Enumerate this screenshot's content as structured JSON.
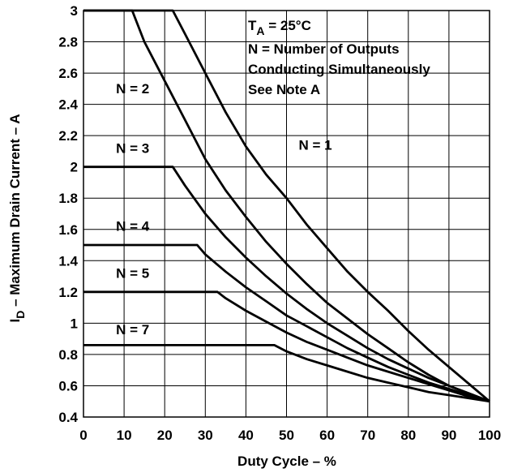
{
  "chart_data": {
    "type": "line",
    "xlabel": "Duty Cycle – %",
    "ylabel_main": "I",
    "ylabel_sub": "D",
    "ylabel_rest": " – Maximum Drain Current – A",
    "xlim": [
      0,
      100
    ],
    "ylim": [
      0.4,
      3.0
    ],
    "x_ticks": [
      0,
      10,
      20,
      30,
      40,
      50,
      60,
      70,
      80,
      90,
      100
    ],
    "y_ticks": [
      0.4,
      0.6,
      0.8,
      1,
      1.2,
      1.4,
      1.6,
      1.8,
      2,
      2.2,
      2.4,
      2.6,
      2.8,
      3
    ],
    "y_tick_labels": [
      "0.4",
      "0.6",
      "0.8",
      "1",
      "1.2",
      "1.4",
      "1.6",
      "1.8",
      "2",
      "2.2",
      "2.4",
      "2.6",
      "2.8",
      "3"
    ],
    "grid": true,
    "annotation": {
      "ta_main": "T",
      "ta_sub": "A",
      "ta_rest": " = 25°C",
      "line2": "N = Number of Outputs",
      "line3": "Conducting Simultaneously",
      "line4": "See Note A"
    },
    "series": [
      {
        "label": "N = 1",
        "label_at": [
          53,
          2.11
        ],
        "points": [
          [
            0,
            3.0
          ],
          [
            22,
            3.0
          ],
          [
            25,
            2.85
          ],
          [
            30,
            2.6
          ],
          [
            35,
            2.35
          ],
          [
            40,
            2.13
          ],
          [
            45,
            1.95
          ],
          [
            50,
            1.8
          ],
          [
            55,
            1.63
          ],
          [
            60,
            1.48
          ],
          [
            65,
            1.33
          ],
          [
            70,
            1.2
          ],
          [
            75,
            1.08
          ],
          [
            80,
            0.95
          ],
          [
            85,
            0.83
          ],
          [
            90,
            0.72
          ],
          [
            95,
            0.61
          ],
          [
            100,
            0.5
          ]
        ]
      },
      {
        "label": "N = 2",
        "label_at": [
          8,
          2.47
        ],
        "points": [
          [
            0,
            3.0
          ],
          [
            12,
            3.0
          ],
          [
            15,
            2.8
          ],
          [
            20,
            2.55
          ],
          [
            25,
            2.3
          ],
          [
            30,
            2.05
          ],
          [
            35,
            1.85
          ],
          [
            40,
            1.68
          ],
          [
            45,
            1.52
          ],
          [
            50,
            1.38
          ],
          [
            55,
            1.25
          ],
          [
            60,
            1.13
          ],
          [
            65,
            1.03
          ],
          [
            70,
            0.93
          ],
          [
            75,
            0.84
          ],
          [
            80,
            0.75
          ],
          [
            85,
            0.67
          ],
          [
            90,
            0.6
          ],
          [
            95,
            0.55
          ],
          [
            100,
            0.5
          ]
        ]
      },
      {
        "label": "N = 3",
        "label_at": [
          8,
          2.09
        ],
        "points": [
          [
            0,
            2.0
          ],
          [
            22,
            2.0
          ],
          [
            25,
            1.88
          ],
          [
            30,
            1.7
          ],
          [
            35,
            1.55
          ],
          [
            40,
            1.42
          ],
          [
            45,
            1.3
          ],
          [
            50,
            1.19
          ],
          [
            55,
            1.09
          ],
          [
            60,
            1.0
          ],
          [
            65,
            0.92
          ],
          [
            70,
            0.84
          ],
          [
            75,
            0.77
          ],
          [
            80,
            0.71
          ],
          [
            85,
            0.65
          ],
          [
            90,
            0.6
          ],
          [
            95,
            0.55
          ],
          [
            100,
            0.5
          ]
        ]
      },
      {
        "label": "N = 4",
        "label_at": [
          8,
          1.59
        ],
        "points": [
          [
            0,
            1.5
          ],
          [
            28,
            1.5
          ],
          [
            30,
            1.44
          ],
          [
            35,
            1.33
          ],
          [
            40,
            1.23
          ],
          [
            45,
            1.14
          ],
          [
            50,
            1.05
          ],
          [
            55,
            0.98
          ],
          [
            60,
            0.91
          ],
          [
            65,
            0.84
          ],
          [
            70,
            0.78
          ],
          [
            75,
            0.72
          ],
          [
            80,
            0.67
          ],
          [
            85,
            0.62
          ],
          [
            90,
            0.58
          ],
          [
            95,
            0.54
          ],
          [
            100,
            0.5
          ]
        ]
      },
      {
        "label": "N = 5",
        "label_at": [
          8,
          1.29
        ],
        "points": [
          [
            0,
            1.2
          ],
          [
            33,
            1.2
          ],
          [
            35,
            1.16
          ],
          [
            40,
            1.08
          ],
          [
            45,
            1.01
          ],
          [
            50,
            0.94
          ],
          [
            55,
            0.88
          ],
          [
            60,
            0.83
          ],
          [
            65,
            0.78
          ],
          [
            70,
            0.73
          ],
          [
            75,
            0.69
          ],
          [
            80,
            0.65
          ],
          [
            85,
            0.61
          ],
          [
            90,
            0.57
          ],
          [
            95,
            0.53
          ],
          [
            100,
            0.5
          ]
        ]
      },
      {
        "label": "N = 7",
        "label_at": [
          8,
          0.93
        ],
        "points": [
          [
            0,
            0.86
          ],
          [
            47,
            0.86
          ],
          [
            50,
            0.82
          ],
          [
            55,
            0.77
          ],
          [
            60,
            0.73
          ],
          [
            65,
            0.69
          ],
          [
            70,
            0.65
          ],
          [
            75,
            0.62
          ],
          [
            80,
            0.59
          ],
          [
            85,
            0.56
          ],
          [
            90,
            0.54
          ],
          [
            95,
            0.52
          ],
          [
            100,
            0.5
          ]
        ]
      }
    ]
  }
}
